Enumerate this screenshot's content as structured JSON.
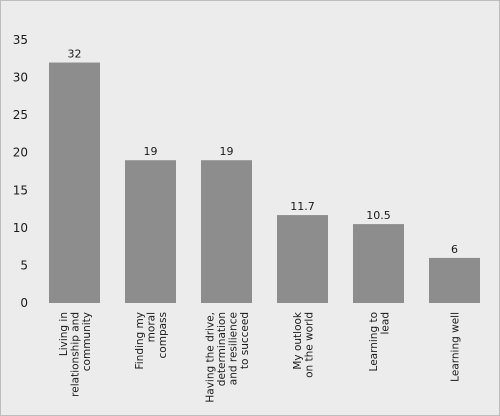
{
  "chart_data": {
    "type": "bar",
    "categories": [
      [
        "Living in",
        "relationship and",
        "community"
      ],
      [
        "Finding my",
        "moral",
        "compass"
      ],
      [
        "Having the drive,",
        "determination",
        "and resilience",
        "to succeed"
      ],
      [
        "My outlook",
        "on the world"
      ],
      [
        "Learning to",
        "lead"
      ],
      [
        "Learning well"
      ]
    ],
    "values": [
      32,
      19,
      19,
      11.7,
      10.5,
      6
    ],
    "value_labels": [
      "32",
      "19",
      "19",
      "11.7",
      "10.5",
      "6"
    ],
    "title": "",
    "xlabel": "",
    "ylabel": "",
    "ylim": [
      0,
      35
    ],
    "yticks": [
      0,
      5,
      10,
      15,
      20,
      25,
      30,
      35
    ],
    "grid": false,
    "legend": "none",
    "colors": {
      "bar": "#8d8d8d",
      "background": "#ececec",
      "text": "#1a1a1a"
    }
  }
}
